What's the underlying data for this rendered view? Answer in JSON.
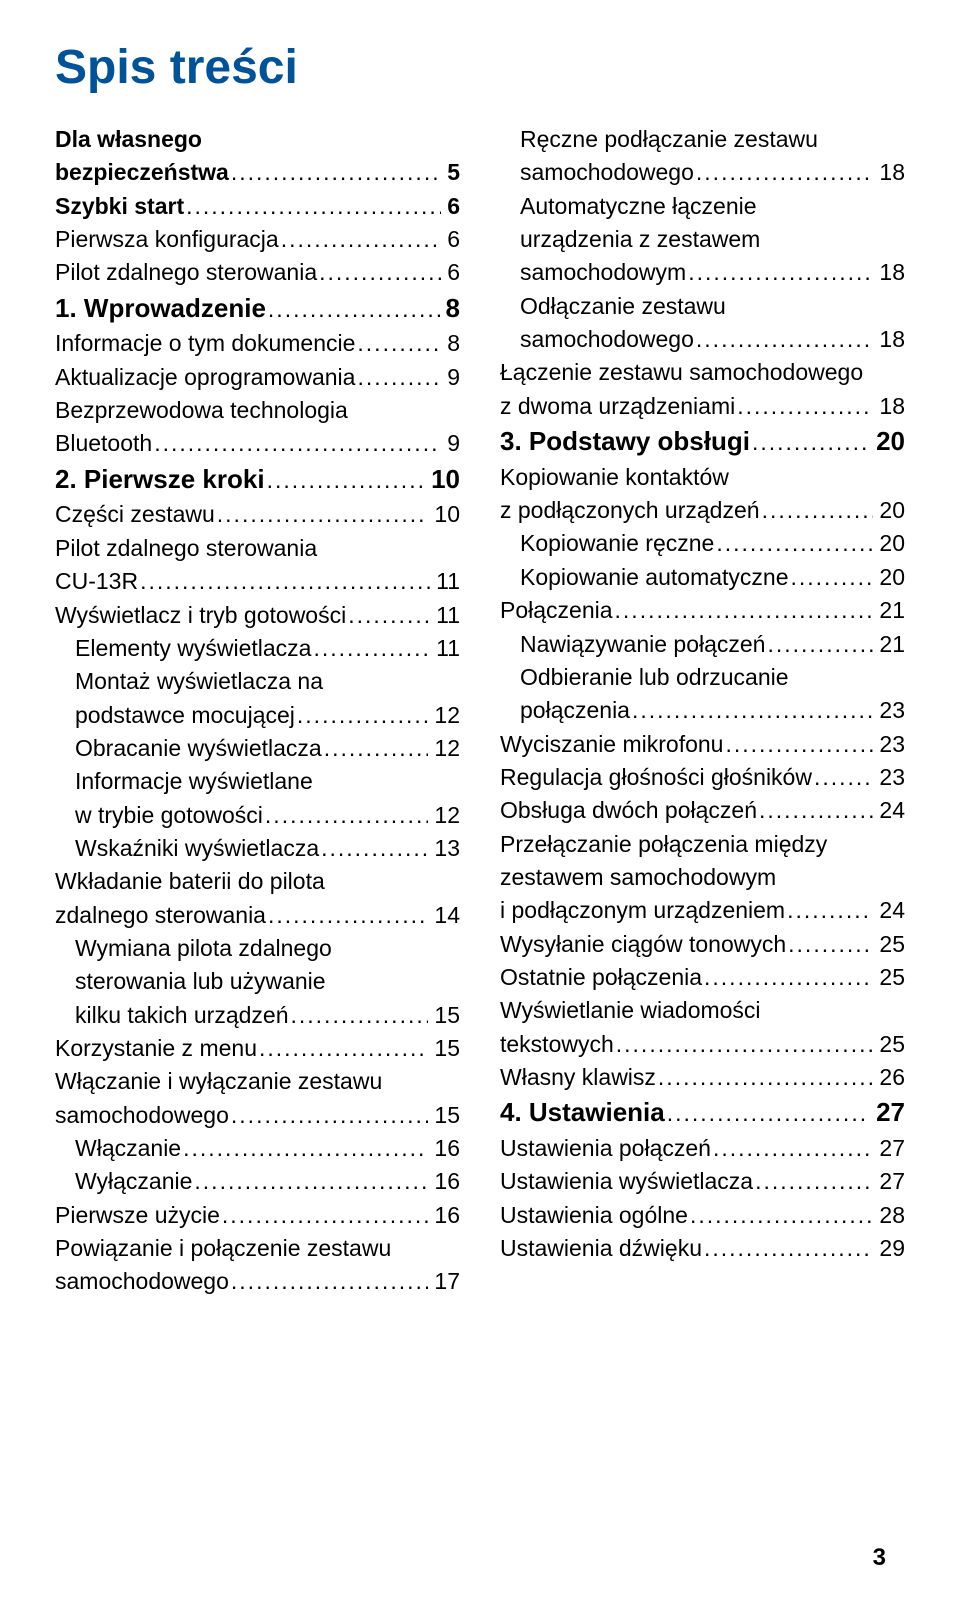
{
  "title": "Spis treści",
  "page_number": "3",
  "colors": {
    "title": "#005398",
    "text": "#000000",
    "background": "#ffffff"
  },
  "left": [
    {
      "label": "Dla własnego\nbezpieczeństwa",
      "page": "5",
      "style": "bold",
      "indent": 0
    },
    {
      "label": "Szybki start",
      "page": "6",
      "style": "bold",
      "indent": 0
    },
    {
      "label": "Pierwsza konfiguracja",
      "page": "6",
      "style": "",
      "indent": 0
    },
    {
      "label": "Pilot zdalnego sterowania",
      "page": "6",
      "style": "",
      "indent": 0
    },
    {
      "label": "1. Wprowadzenie",
      "page": "8",
      "style": "big",
      "indent": 0
    },
    {
      "label": "Informacje o tym dokumencie",
      "page": "8",
      "style": "",
      "indent": 0
    },
    {
      "label": "Aktualizacje oprogramowania",
      "page": "9",
      "style": "",
      "indent": 0
    },
    {
      "label": "Bezprzewodowa technologia\nBluetooth",
      "page": "9",
      "style": "",
      "indent": 0
    },
    {
      "label": "2. Pierwsze kroki",
      "page": "10",
      "style": "big",
      "indent": 0
    },
    {
      "label": "Części zestawu",
      "page": "10",
      "style": "",
      "indent": 0
    },
    {
      "label": "Pilot zdalnego sterowania\nCU-13R",
      "page": "11",
      "style": "",
      "indent": 0
    },
    {
      "label": "Wyświetlacz i tryb gotowości",
      "page": "11",
      "style": "",
      "indent": 0
    },
    {
      "label": "Elementy wyświetlacza",
      "page": "11",
      "style": "",
      "indent": 1
    },
    {
      "label": "Montaż wyświetlacza na\npodstawce mocującej",
      "page": "12",
      "style": "",
      "indent": 1
    },
    {
      "label": "Obracanie wyświetlacza",
      "page": "12",
      "style": "",
      "indent": 1
    },
    {
      "label": "Informacje wyświetlane\nw trybie gotowości",
      "page": "12",
      "style": "",
      "indent": 1
    },
    {
      "label": "Wskaźniki wyświetlacza",
      "page": "13",
      "style": "",
      "indent": 1
    },
    {
      "label": "Wkładanie baterii do pilota\nzdalnego sterowania",
      "page": "14",
      "style": "",
      "indent": 0
    },
    {
      "label": "Wymiana pilota zdalnego\nsterowania lub używanie\nkilku takich urządzeń",
      "page": "15",
      "style": "",
      "indent": 1
    },
    {
      "label": "Korzystanie z menu",
      "page": "15",
      "style": "",
      "indent": 0
    },
    {
      "label": "Włączanie i wyłączanie zestawu\nsamochodowego",
      "page": "15",
      "style": "",
      "indent": 0
    },
    {
      "label": "Włączanie",
      "page": "16",
      "style": "",
      "indent": 1
    },
    {
      "label": "Wyłączanie",
      "page": "16",
      "style": "",
      "indent": 1
    },
    {
      "label": "Pierwsze użycie",
      "page": "16",
      "style": "",
      "indent": 0
    },
    {
      "label": "Powiązanie i połączenie zestawu\nsamochodowego",
      "page": "17",
      "style": "",
      "indent": 0
    }
  ],
  "right": [
    {
      "label": "Ręczne podłączanie zestawu\nsamochodowego",
      "page": "18",
      "style": "",
      "indent": 1
    },
    {
      "label": "Automatyczne łączenie\nurządzenia z zestawem\nsamochodowym",
      "page": "18",
      "style": "",
      "indent": 1
    },
    {
      "label": "Odłączanie zestawu\nsamochodowego",
      "page": "18",
      "style": "",
      "indent": 1
    },
    {
      "label": "Łączenie zestawu samochodowego\nz dwoma urządzeniami",
      "page": "18",
      "style": "",
      "indent": 0
    },
    {
      "label": "3. Podstawy obsługi",
      "page": "20",
      "style": "big",
      "indent": 0
    },
    {
      "label": "Kopiowanie kontaktów\nz podłączonych urządzeń",
      "page": "20",
      "style": "",
      "indent": 0
    },
    {
      "label": "Kopiowanie ręczne",
      "page": "20",
      "style": "",
      "indent": 1
    },
    {
      "label": "Kopiowanie automatyczne",
      "page": "20",
      "style": "",
      "indent": 1
    },
    {
      "label": "Połączenia",
      "page": "21",
      "style": "",
      "indent": 0
    },
    {
      "label": "Nawiązywanie połączeń",
      "page": "21",
      "style": "",
      "indent": 1
    },
    {
      "label": "Odbieranie lub odrzucanie\npołączenia",
      "page": "23",
      "style": "",
      "indent": 1
    },
    {
      "label": "Wyciszanie mikrofonu",
      "page": "23",
      "style": "",
      "indent": 0
    },
    {
      "label": "Regulacja głośności głośników",
      "page": "23",
      "style": "",
      "indent": 0
    },
    {
      "label": "Obsługa dwóch połączeń",
      "page": "24",
      "style": "",
      "indent": 0
    },
    {
      "label": "Przełączanie połączenia między\nzestawem samochodowym\ni podłączonym urządzeniem",
      "page": "24",
      "style": "",
      "indent": 0
    },
    {
      "label": "Wysyłanie ciągów tonowych",
      "page": "25",
      "style": "",
      "indent": 0
    },
    {
      "label": "Ostatnie połączenia",
      "page": "25",
      "style": "",
      "indent": 0
    },
    {
      "label": "Wyświetlanie wiadomości\ntekstowych",
      "page": "25",
      "style": "",
      "indent": 0
    },
    {
      "label": "Własny klawisz",
      "page": "26",
      "style": "",
      "indent": 0
    },
    {
      "label": "4. Ustawienia",
      "page": "27",
      "style": "big",
      "indent": 0
    },
    {
      "label": "Ustawienia połączeń",
      "page": "27",
      "style": "",
      "indent": 0
    },
    {
      "label": "Ustawienia wyświetlacza",
      "page": "27",
      "style": "",
      "indent": 0
    },
    {
      "label": "Ustawienia ogólne",
      "page": "28",
      "style": "",
      "indent": 0
    },
    {
      "label": "Ustawienia dźwięku",
      "page": "29",
      "style": "",
      "indent": 0
    }
  ]
}
